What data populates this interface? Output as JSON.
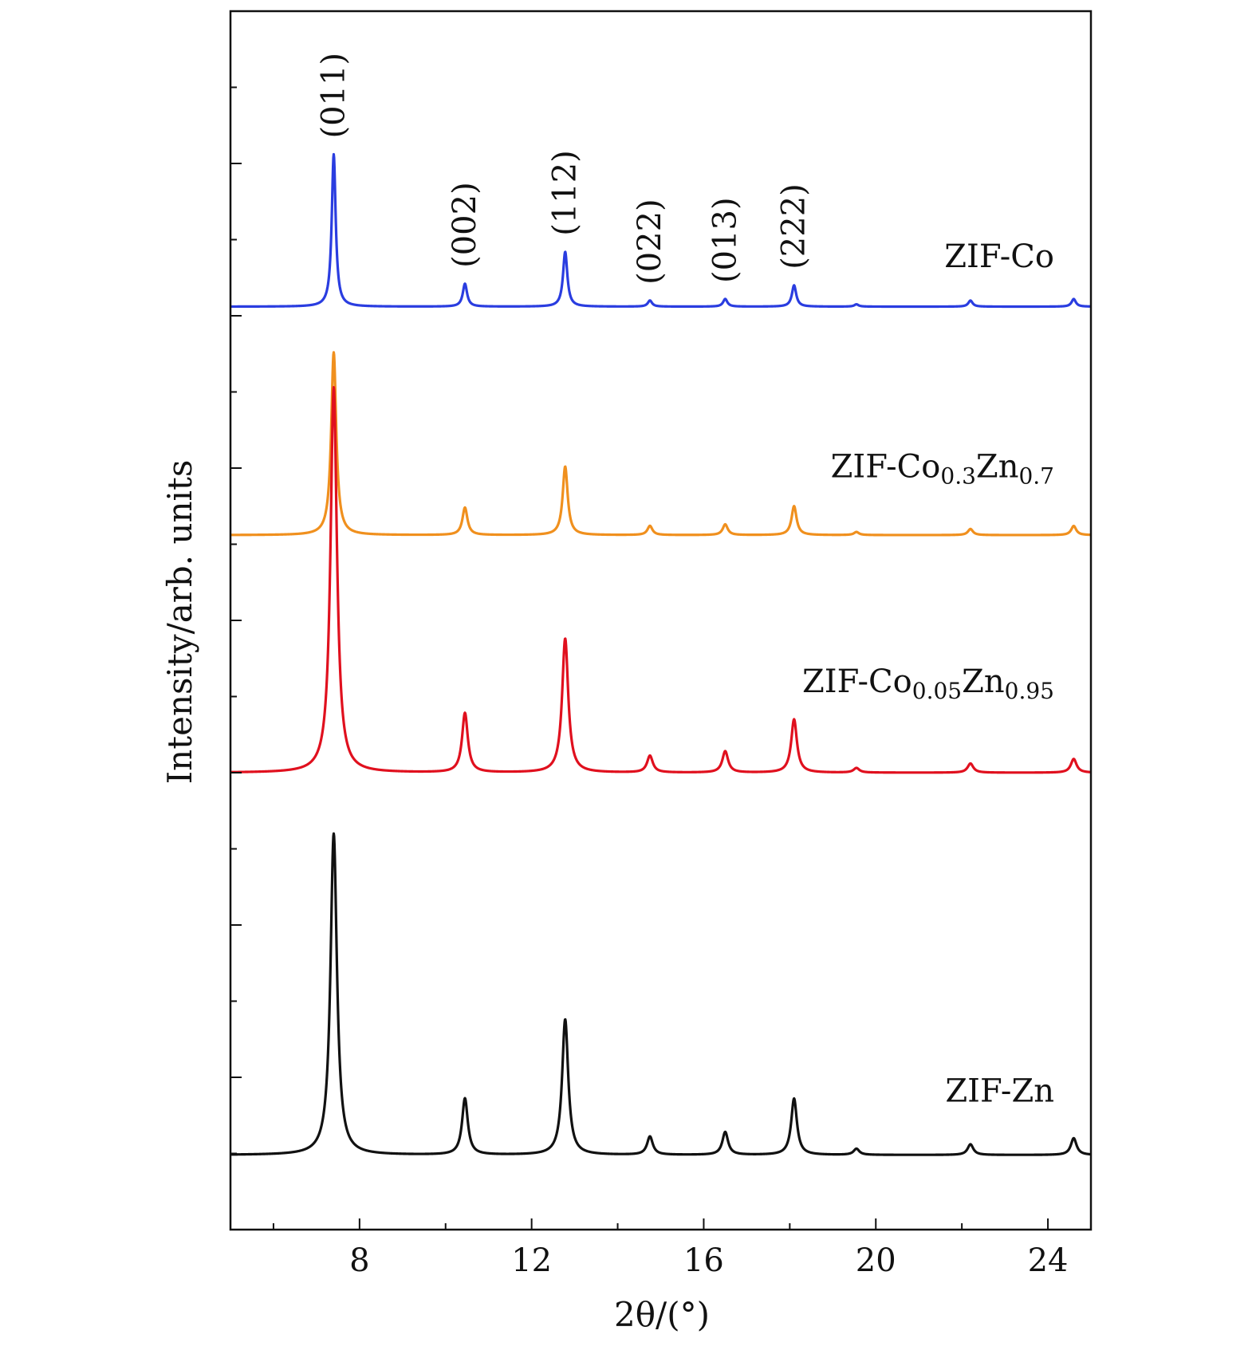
{
  "chart_data": {
    "type": "line",
    "title": "",
    "xlabel": "2θ/(°)",
    "ylabel": "Intensity/arb. units",
    "xlim": [
      5,
      25
    ],
    "x_ticks": [
      8,
      12,
      16,
      20,
      24
    ],
    "x_minor_ticks": [
      6,
      10,
      14,
      18,
      22
    ],
    "y_ticks_shown": false,
    "grid": false,
    "legend": "inline labels at right",
    "peaks": [
      {
        "label": "(011)",
        "x": 7.4
      },
      {
        "label": "(002)",
        "x": 10.45
      },
      {
        "label": "(112)",
        "x": 12.78
      },
      {
        "label": "(022)",
        "x": 14.75
      },
      {
        "label": "(013)",
        "x": 16.5
      },
      {
        "label": "(222)",
        "x": 18.1
      }
    ],
    "peak_positions": [
      7.4,
      10.45,
      12.78,
      14.75,
      16.5,
      18.1,
      19.55,
      22.2,
      24.6
    ],
    "series": [
      {
        "name": "ZIF-Co",
        "name_main": "ZIF-Co",
        "name_parts": [],
        "color": "#2a3de0",
        "offset": 3.06,
        "widths": [
          0.055,
          0.06,
          0.06,
          0.06,
          0.06,
          0.06,
          0.06,
          0.06,
          0.06
        ],
        "intensities": [
          1.0,
          0.15,
          0.36,
          0.04,
          0.05,
          0.14,
          0.015,
          0.04,
          0.05
        ]
      },
      {
        "name": "ZIF-Co0.3Zn0.7",
        "name_main": "ZIF-Co",
        "name_parts": [
          {
            "text": "0.3",
            "sub": true
          },
          {
            "text": "Zn",
            "sub": false
          },
          {
            "text": "0.7",
            "sub": true
          }
        ],
        "color": "#f0901e",
        "offset": 1.56,
        "widths": [
          0.07,
          0.07,
          0.07,
          0.07,
          0.07,
          0.07,
          0.07,
          0.07,
          0.07
        ],
        "intensities": [
          1.2,
          0.18,
          0.45,
          0.06,
          0.07,
          0.19,
          0.02,
          0.04,
          0.06
        ]
      },
      {
        "name": "ZIF-Co0.05Zn0.95",
        "name_main": "ZIF-Co",
        "name_parts": [
          {
            "text": "0.05",
            "sub": true
          },
          {
            "text": "Zn",
            "sub": false
          },
          {
            "text": "0.95",
            "sub": true
          }
        ],
        "color": "#e0101e",
        "offset": 0.0,
        "widths": [
          0.09,
          0.08,
          0.085,
          0.08,
          0.08,
          0.08,
          0.08,
          0.08,
          0.08
        ],
        "intensities": [
          2.53,
          0.39,
          0.88,
          0.11,
          0.14,
          0.35,
          0.03,
          0.06,
          0.09
        ]
      },
      {
        "name": "ZIF-Zn",
        "name_main": "ZIF-Zn",
        "name_parts": [],
        "color": "#111111",
        "offset": -2.51,
        "widths": [
          0.09,
          0.08,
          0.085,
          0.08,
          0.08,
          0.08,
          0.08,
          0.08,
          0.08
        ],
        "intensities": [
          2.11,
          0.37,
          0.89,
          0.12,
          0.15,
          0.37,
          0.04,
          0.07,
          0.11
        ]
      }
    ],
    "ylim": [
      -3.0,
      5.0
    ]
  }
}
